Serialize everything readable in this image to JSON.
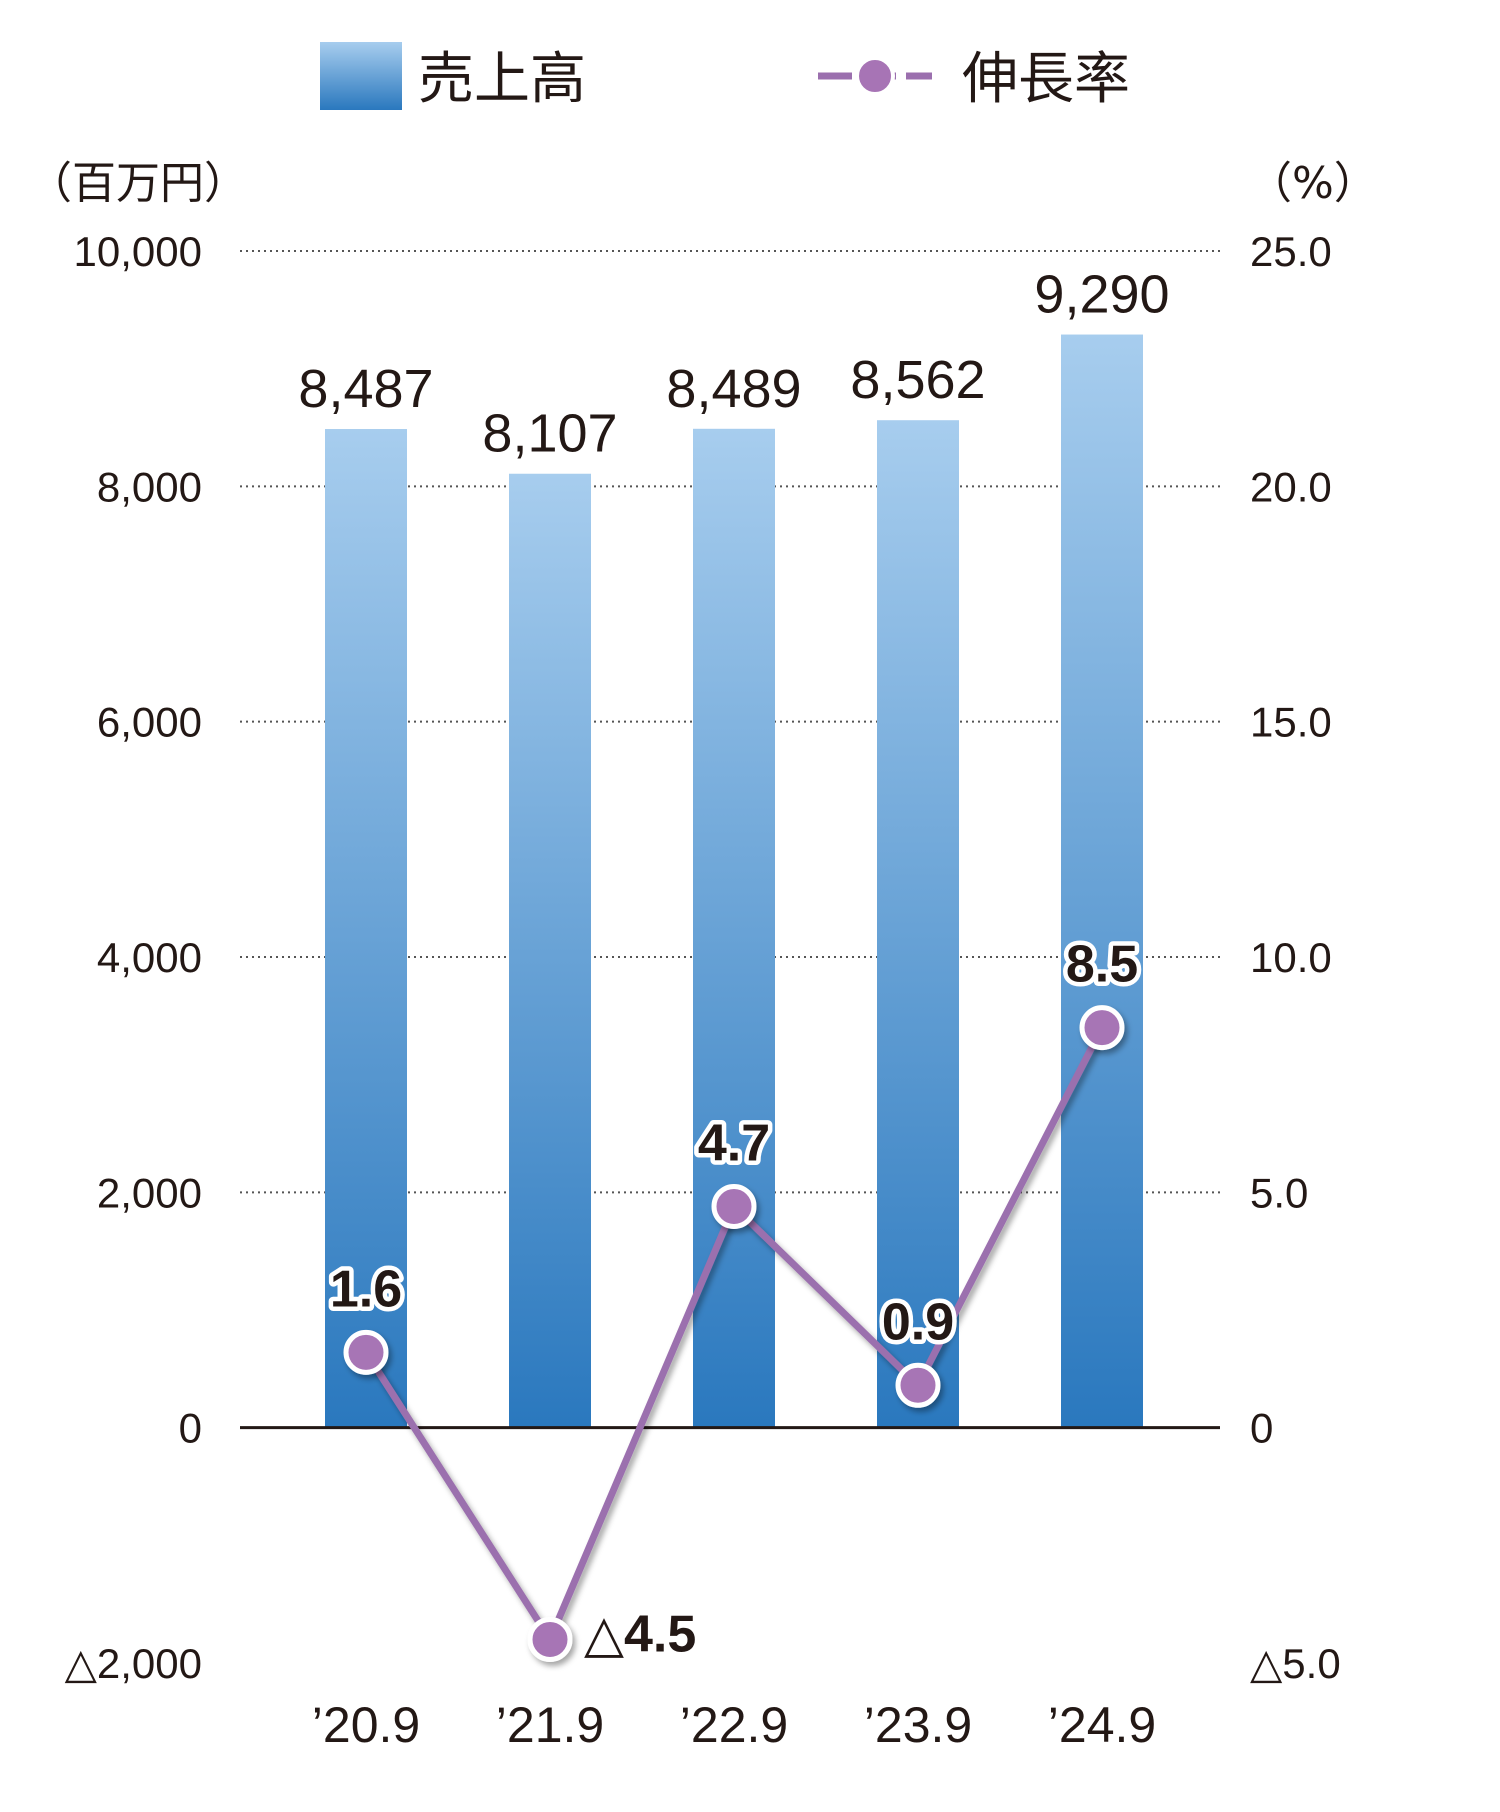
{
  "chart_data": {
    "type": "bar",
    "categories": [
      "’20.9",
      "’21.9",
      "’22.9",
      "’23.9",
      "’24.9"
    ],
    "series": [
      {
        "name": "売上高",
        "type": "bar",
        "axis": "left",
        "values": [
          8487,
          8107,
          8489,
          8562,
          9290
        ],
        "labels": [
          "8,487",
          "8,107",
          "8,489",
          "8,562",
          "9,290"
        ],
        "color_top": "#a7cdee",
        "color_bottom": "#2a78be"
      },
      {
        "name": "伸長率",
        "type": "line",
        "axis": "right",
        "values": [
          1.6,
          -4.5,
          4.7,
          0.9,
          8.5
        ],
        "labels": [
          "1.6",
          "△4.5",
          "4.7",
          "0.9",
          "8.5"
        ],
        "color": "#9b6fae",
        "marker_color": "#a774b5"
      }
    ],
    "left_axis": {
      "unit": "（百万円）",
      "ylim": [
        -2000,
        10000
      ],
      "ticks": [
        -2000,
        0,
        2000,
        4000,
        6000,
        8000,
        10000
      ],
      "tick_labels": [
        "△2,000",
        "0",
        "2,000",
        "4,000",
        "6,000",
        "8,000",
        "10,000"
      ]
    },
    "right_axis": {
      "unit": "（%）",
      "ylim": [
        -5,
        25
      ],
      "ticks": [
        -5,
        0,
        5,
        10,
        15,
        20,
        25
      ],
      "tick_labels": [
        "△5.0",
        "0",
        "5.0",
        "10.0",
        "15.0",
        "20.0",
        "25.0"
      ]
    },
    "grid": true,
    "legend_position": "top"
  }
}
